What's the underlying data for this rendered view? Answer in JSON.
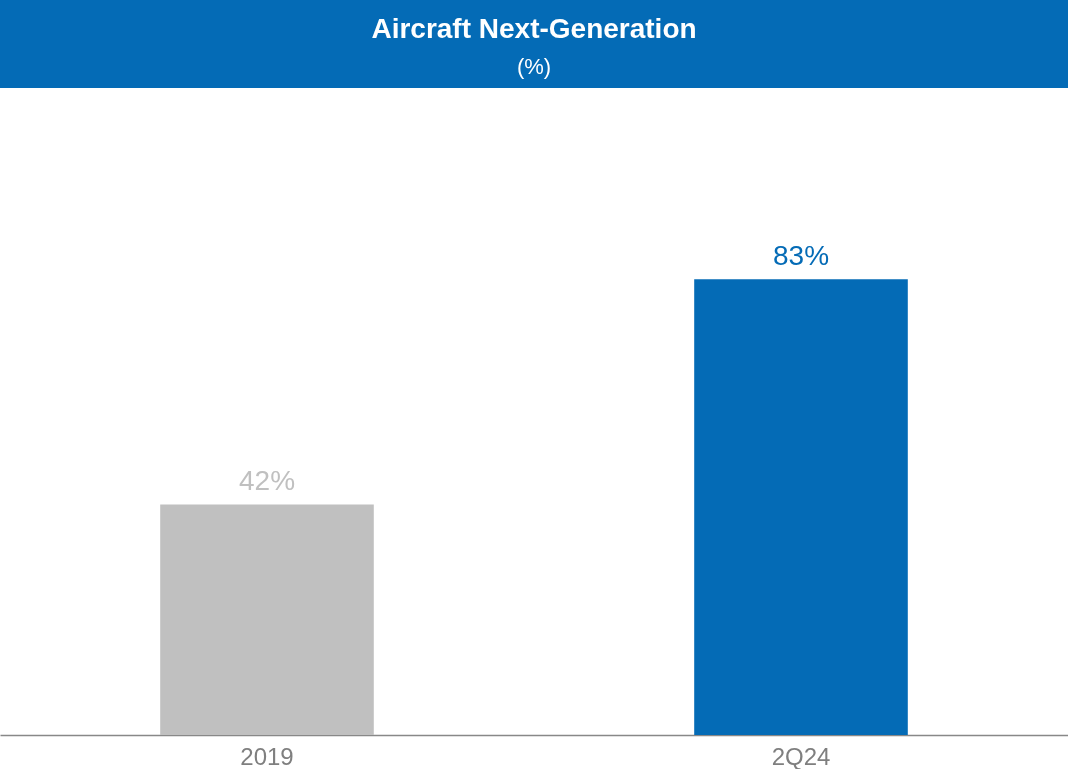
{
  "chart_data": {
    "type": "bar",
    "title": "Aircraft Next-Generation",
    "subtitle": "(%)",
    "categories": [
      "2019",
      "2Q24"
    ],
    "values": [
      42,
      83
    ],
    "colors": [
      "#c0c0c0",
      "#046bb6"
    ],
    "value_labels": [
      "42%",
      "83%"
    ]
  }
}
